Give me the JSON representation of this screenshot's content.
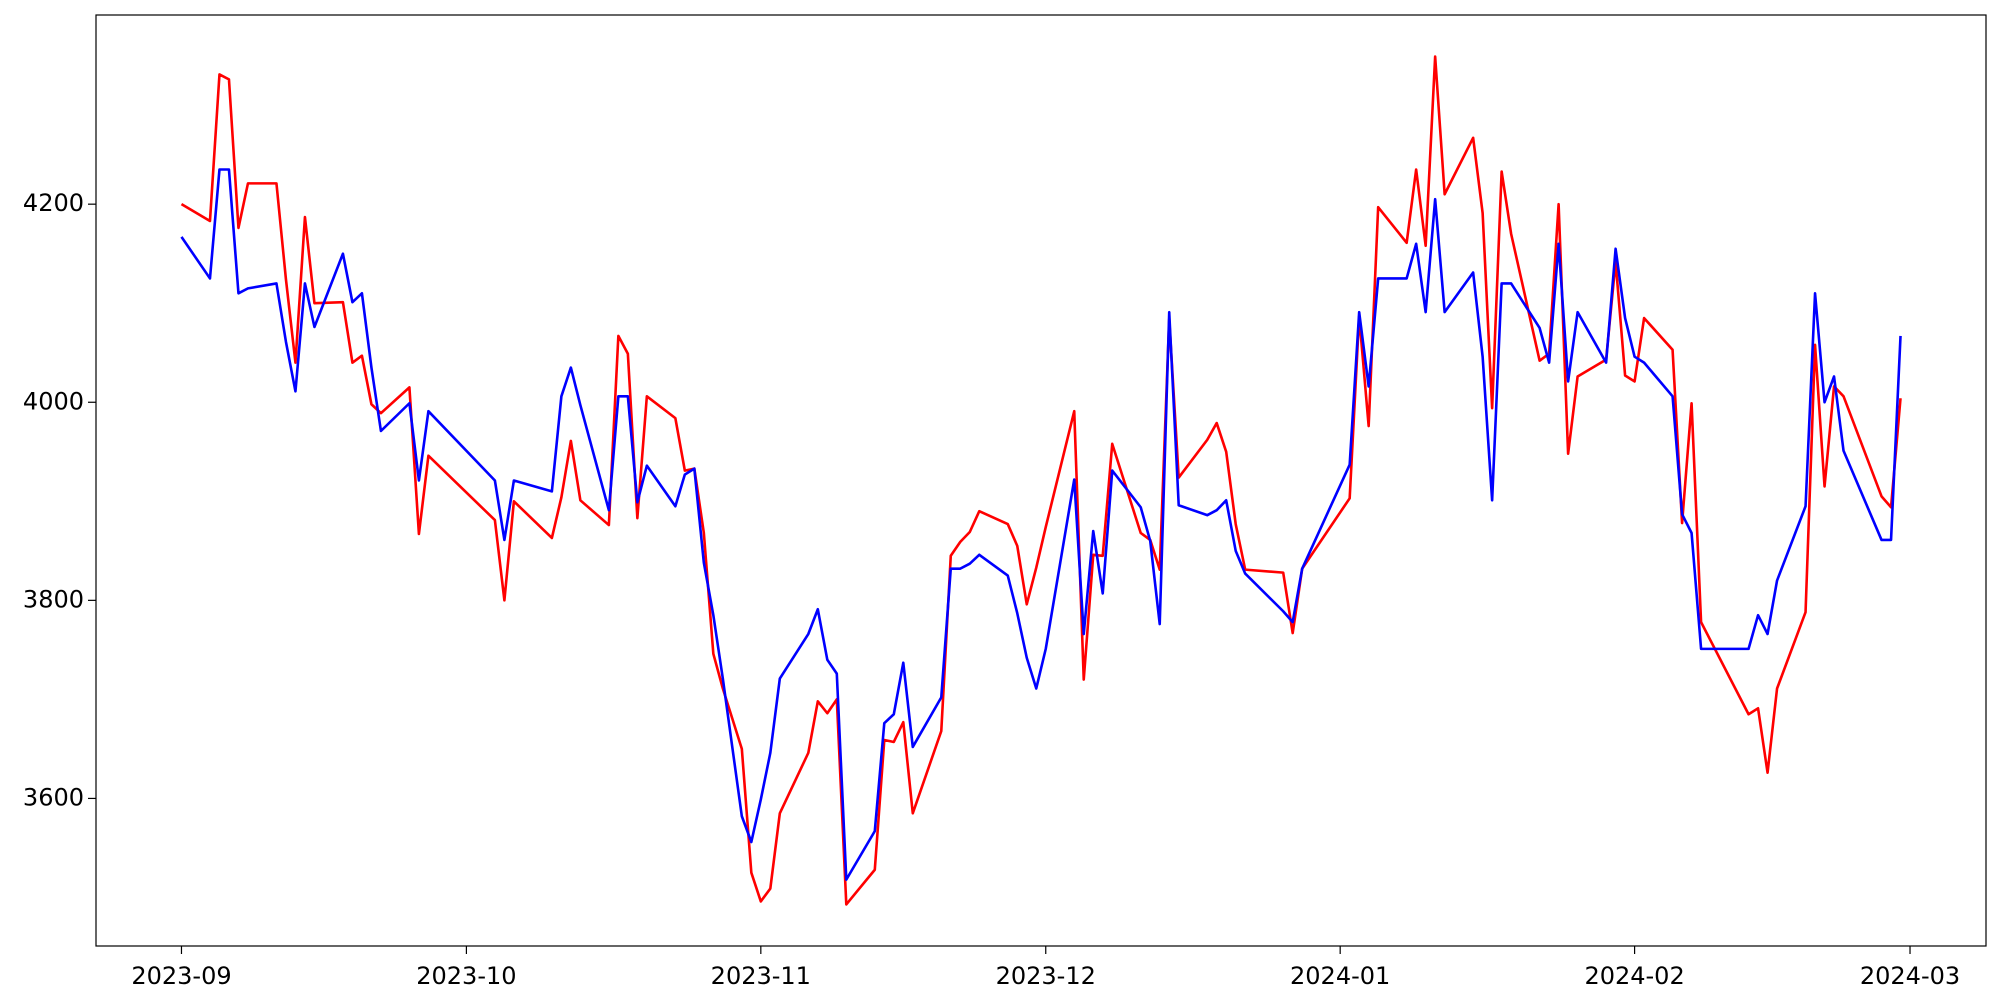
{
  "chart_data": {
    "type": "line",
    "x": [
      "2023-09-01",
      "2023-09-04",
      "2023-09-05",
      "2023-09-06",
      "2023-09-07",
      "2023-09-08",
      "2023-09-11",
      "2023-09-12",
      "2023-09-13",
      "2023-09-14",
      "2023-09-15",
      "2023-09-18",
      "2023-09-19",
      "2023-09-20",
      "2023-09-21",
      "2023-09-22",
      "2023-09-25",
      "2023-09-26",
      "2023-09-27",
      "2023-10-04",
      "2023-10-05",
      "2023-10-06",
      "2023-10-10",
      "2023-10-11",
      "2023-10-12",
      "2023-10-13",
      "2023-10-16",
      "2023-10-17",
      "2023-10-18",
      "2023-10-19",
      "2023-10-20",
      "2023-10-23",
      "2023-10-24",
      "2023-10-25",
      "2023-10-26",
      "2023-10-27",
      "2023-10-28",
      "2023-10-30",
      "2023-10-31",
      "2023-11-01",
      "2023-11-02",
      "2023-11-03",
      "2023-11-06",
      "2023-11-07",
      "2023-11-08",
      "2023-11-09",
      "2023-11-10",
      "2023-11-13",
      "2023-11-14",
      "2023-11-15",
      "2023-11-16",
      "2023-11-17",
      "2023-11-20",
      "2023-11-21",
      "2023-11-22",
      "2023-11-23",
      "2023-11-24",
      "2023-11-27",
      "2023-11-28",
      "2023-11-29",
      "2023-11-30",
      "2023-12-01",
      "2023-12-04",
      "2023-12-05",
      "2023-12-06",
      "2023-12-07",
      "2023-12-08",
      "2023-12-11",
      "2023-12-12",
      "2023-12-13",
      "2023-12-14",
      "2023-12-15",
      "2023-12-18",
      "2023-12-19",
      "2023-12-20",
      "2023-12-21",
      "2023-12-22",
      "2023-12-26",
      "2023-12-27",
      "2023-12-28",
      "2024-01-02",
      "2024-01-03",
      "2024-01-04",
      "2024-01-05",
      "2024-01-08",
      "2024-01-09",
      "2024-01-10",
      "2024-01-11",
      "2024-01-12",
      "2024-01-15",
      "2024-01-16",
      "2024-01-17",
      "2024-01-18",
      "2024-01-19",
      "2024-01-22",
      "2024-01-23",
      "2024-01-24",
      "2024-01-25",
      "2024-01-26",
      "2024-01-29",
      "2024-01-30",
      "2024-01-31",
      "2024-02-01",
      "2024-02-02",
      "2024-02-05",
      "2024-02-06",
      "2024-02-07",
      "2024-02-08",
      "2024-02-13",
      "2024-02-14",
      "2024-02-15",
      "2024-02-16",
      "2024-02-19",
      "2024-02-20",
      "2024-02-21",
      "2024-02-22",
      "2024-02-23",
      "2024-02-27",
      "2024-02-28",
      "2024-02-29"
    ],
    "series": [
      {
        "color": "#ff0000",
        "values": [
          4200,
          4183,
          4331,
          4326,
          4176,
          4221,
          4221,
          4124,
          4040,
          4187,
          4100,
          4101,
          4040,
          4047,
          3998,
          3989,
          4015,
          3867,
          3946,
          3881,
          3800,
          3900,
          3863,
          3904,
          3961,
          3901,
          3876,
          4067,
          4049,
          3883,
          4006,
          3984,
          3931,
          3933,
          3868,
          3746,
          3711,
          3650,
          3525,
          3496,
          3509,
          3585,
          3646,
          3698,
          3686,
          3700,
          3493,
          3528,
          3659,
          3657,
          3677,
          3585,
          3668,
          3845,
          3859,
          3869,
          3890,
          3877,
          3855,
          3796,
          3833,
          3874,
          3991,
          3720,
          3846,
          3845,
          3958,
          3868,
          3861,
          3831,
          4084,
          3924,
          3962,
          3979,
          3950,
          3877,
          3831,
          3828,
          3767,
          3832,
          3903,
          4087,
          3976,
          4197,
          4161,
          4235,
          4158,
          4349,
          4210,
          4267,
          4191,
          3994,
          4233,
          4170,
          4042,
          4049,
          4200,
          3948,
          4026,
          4043,
          4142,
          4027,
          4021,
          4085,
          4053,
          3878,
          3999,
          3778,
          3685,
          3691,
          3626,
          3711,
          3788,
          4058,
          3915,
          4016,
          4006,
          3905,
          3894,
          4004
        ]
      },
      {
        "color": "#0000ff",
        "values": [
          4167,
          4125,
          4235,
          4235,
          4110,
          4115,
          4120,
          4061,
          4011,
          4120,
          4076,
          4150,
          4101,
          4110,
          4035,
          3971,
          3999,
          3921,
          3991,
          3921,
          3861,
          3921,
          3910,
          4006,
          4035,
          3997,
          3891,
          4006,
          4006,
          3899,
          3936,
          3895,
          3927,
          3933,
          3838,
          3785,
          3721,
          3582,
          3556,
          3599,
          3646,
          3721,
          3766,
          3791,
          3740,
          3726,
          3518,
          3567,
          3676,
          3685,
          3737,
          3652,
          3702,
          3832,
          3832,
          3837,
          3846,
          3825,
          3787,
          3742,
          3711,
          3751,
          3922,
          3766,
          3870,
          3807,
          3931,
          3894,
          3860,
          3776,
          4091,
          3896,
          3886,
          3891,
          3901,
          3850,
          3827,
          3789,
          3778,
          3832,
          3937,
          4091,
          4016,
          4125,
          4125,
          4160,
          4091,
          4205,
          4091,
          4131,
          4046,
          3901,
          4120,
          4120,
          4075,
          4040,
          4160,
          4021,
          4091,
          4040,
          4155,
          4085,
          4046,
          4040,
          4006,
          3887,
          3868,
          3751,
          3751,
          3785,
          3766,
          3820,
          3895,
          4110,
          4000,
          4026,
          3951,
          3861,
          3861,
          4067
        ]
      }
    ],
    "xlim": [
      "2023-08-23",
      "2024-03-09"
    ],
    "xticks": [
      {
        "value": "2023-09-01",
        "label": "2023-09"
      },
      {
        "value": "2023-10-01",
        "label": "2023-10"
      },
      {
        "value": "2023-11-01",
        "label": "2023-11"
      },
      {
        "value": "2023-12-01",
        "label": "2023-12"
      },
      {
        "value": "2024-01-01",
        "label": "2024-01"
      },
      {
        "value": "2024-02-01",
        "label": "2024-02"
      },
      {
        "value": "2024-03-01",
        "label": "2024-03"
      }
    ],
    "ylim": [
      3451,
      4391
    ],
    "yticks": [
      3600,
      3800,
      4000,
      4200
    ],
    "grid": false
  }
}
